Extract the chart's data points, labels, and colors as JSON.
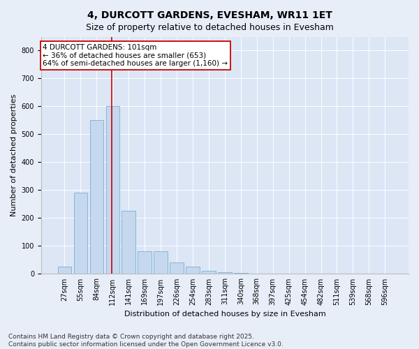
{
  "title": "4, DURCOTT GARDENS, EVESHAM, WR11 1ET",
  "subtitle": "Size of property relative to detached houses in Evesham",
  "xlabel": "Distribution of detached houses by size in Evesham",
  "ylabel": "Number of detached properties",
  "categories": [
    "27sqm",
    "55sqm",
    "84sqm",
    "112sqm",
    "141sqm",
    "169sqm",
    "197sqm",
    "226sqm",
    "254sqm",
    "283sqm",
    "311sqm",
    "340sqm",
    "368sqm",
    "397sqm",
    "425sqm",
    "454sqm",
    "482sqm",
    "511sqm",
    "539sqm",
    "568sqm",
    "596sqm"
  ],
  "values": [
    25,
    290,
    550,
    600,
    225,
    80,
    80,
    40,
    25,
    10,
    7,
    4,
    0,
    0,
    0,
    0,
    0,
    0,
    0,
    0,
    0
  ],
  "bar_color": "#c5d8ee",
  "bar_edge_color": "#7aafd4",
  "vline_color": "#cc0000",
  "vline_x_idx": 2.93,
  "annotation_text": "4 DURCOTT GARDENS: 101sqm\n← 36% of detached houses are smaller (653)\n64% of semi-detached houses are larger (1,160) →",
  "annotation_box_color": "white",
  "annotation_box_edge_color": "#cc0000",
  "ylim": [
    0,
    850
  ],
  "yticks": [
    0,
    100,
    200,
    300,
    400,
    500,
    600,
    700,
    800
  ],
  "fig_bg": "#e8eef8",
  "plot_bg": "#dce6f5",
  "title_fontsize": 10,
  "subtitle_fontsize": 9,
  "axis_label_fontsize": 8,
  "tick_fontsize": 7,
  "annot_fontsize": 7.5,
  "footer_text": "Contains HM Land Registry data © Crown copyright and database right 2025.\nContains public sector information licensed under the Open Government Licence v3.0.",
  "footer_fontsize": 6.5
}
